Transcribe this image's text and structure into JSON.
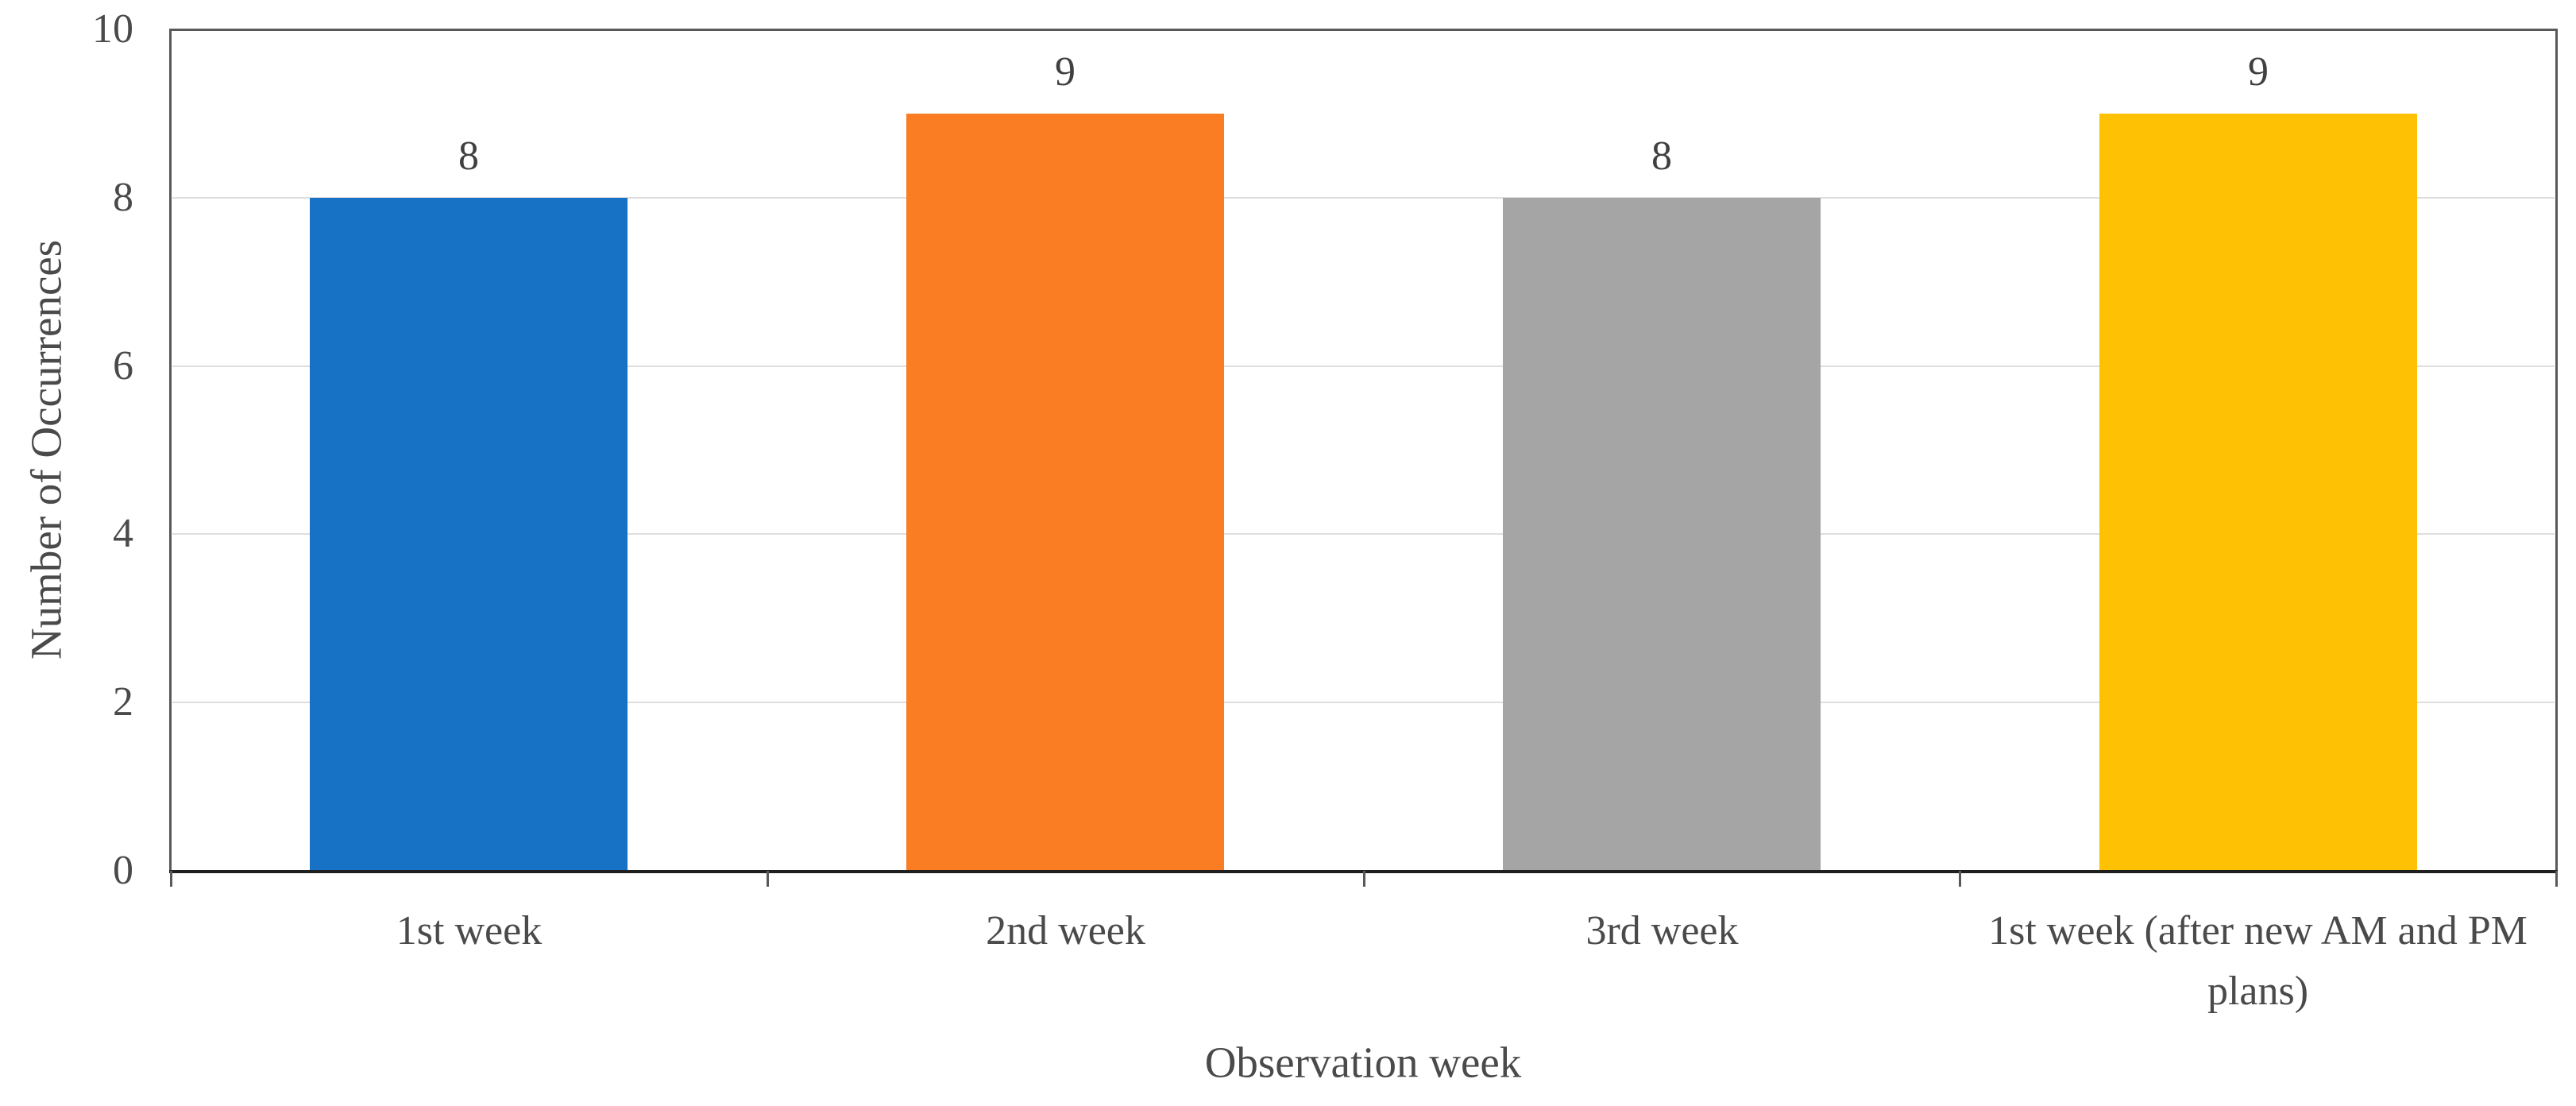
{
  "chart_data": {
    "type": "bar",
    "categories": [
      "1st week",
      "2nd week",
      "3rd week",
      "1st week (after new AM and PM plans)"
    ],
    "values": [
      8,
      9,
      8,
      9
    ],
    "colors": [
      "#1772C5",
      "#FB7D23",
      "#A5A5A5",
      "#FFC103"
    ],
    "title": "",
    "xlabel": "Observation week",
    "ylabel": "Number of Occurrences",
    "ylim": [
      0,
      10
    ],
    "y_ticks": [
      0,
      2,
      4,
      6,
      8,
      10
    ],
    "grid": true,
    "legend": "none",
    "data_labels_shown": true,
    "plot_border_color": "#595959",
    "axis_line_color": "#1f1f1f",
    "gridline_color": "#dedede",
    "text_color": "#4a4a4a"
  }
}
